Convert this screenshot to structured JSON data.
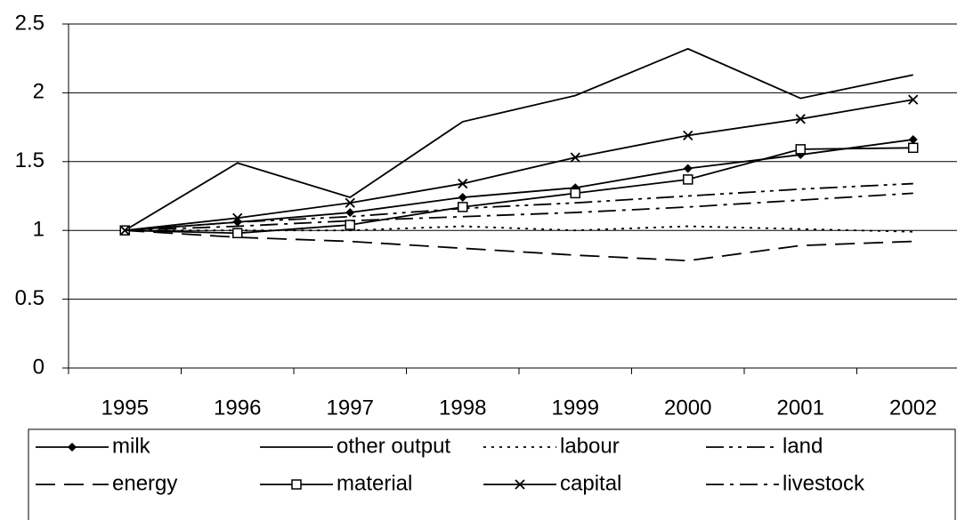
{
  "chart_data": {
    "type": "line",
    "categories": [
      "1995",
      "1996",
      "1997",
      "1998",
      "1999",
      "2000",
      "2001",
      "2002"
    ],
    "series": [
      {
        "name": "milk",
        "color": "#000000",
        "dash": "solid",
        "marker": "diamond",
        "values": [
          1,
          1.06,
          1.13,
          1.24,
          1.31,
          1.45,
          1.55,
          1.66
        ]
      },
      {
        "name": "other output",
        "color": "#000000",
        "dash": "solid",
        "marker": "none",
        "values": [
          1,
          1.49,
          1.24,
          1.79,
          1.98,
          2.32,
          1.96,
          2.13
        ]
      },
      {
        "name": "labour",
        "color": "#000000",
        "dash": "dot",
        "marker": "none",
        "values": [
          1,
          1.0,
          1.0,
          1.03,
          1.0,
          1.03,
          1.01,
          0.99
        ]
      },
      {
        "name": "land",
        "color": "#000000",
        "dash": "dashdotdot",
        "marker": "none",
        "values": [
          1,
          1.06,
          1.1,
          1.16,
          1.2,
          1.25,
          1.3,
          1.34
        ]
      },
      {
        "name": "energy",
        "color": "#000000",
        "dash": "longdash",
        "marker": "none",
        "values": [
          1,
          0.95,
          0.92,
          0.87,
          0.82,
          0.78,
          0.89,
          0.92
        ]
      },
      {
        "name": "material",
        "color": "#000000",
        "dash": "solid",
        "marker": "square",
        "values": [
          1,
          0.98,
          1.04,
          1.17,
          1.27,
          1.37,
          1.59,
          1.6
        ]
      },
      {
        "name": "capital",
        "color": "#000000",
        "dash": "solid",
        "marker": "x",
        "values": [
          1,
          1.09,
          1.2,
          1.34,
          1.53,
          1.69,
          1.81,
          1.95
        ]
      },
      {
        "name": "livestock",
        "color": "#000000",
        "dash": "dashdot",
        "marker": "none",
        "values": [
          1,
          1.03,
          1.07,
          1.1,
          1.13,
          1.17,
          1.22,
          1.27
        ]
      }
    ],
    "ylim": [
      0,
      2.5
    ],
    "yticks": [
      0,
      {
        "value": 0.5,
        "label": "0.5"
      },
      1,
      {
        "value": 1.5,
        "label": "1.5"
      },
      2,
      {
        "value": 2.5,
        "label": "2.5"
      }
    ],
    "grid": true,
    "legend": "bottom"
  }
}
